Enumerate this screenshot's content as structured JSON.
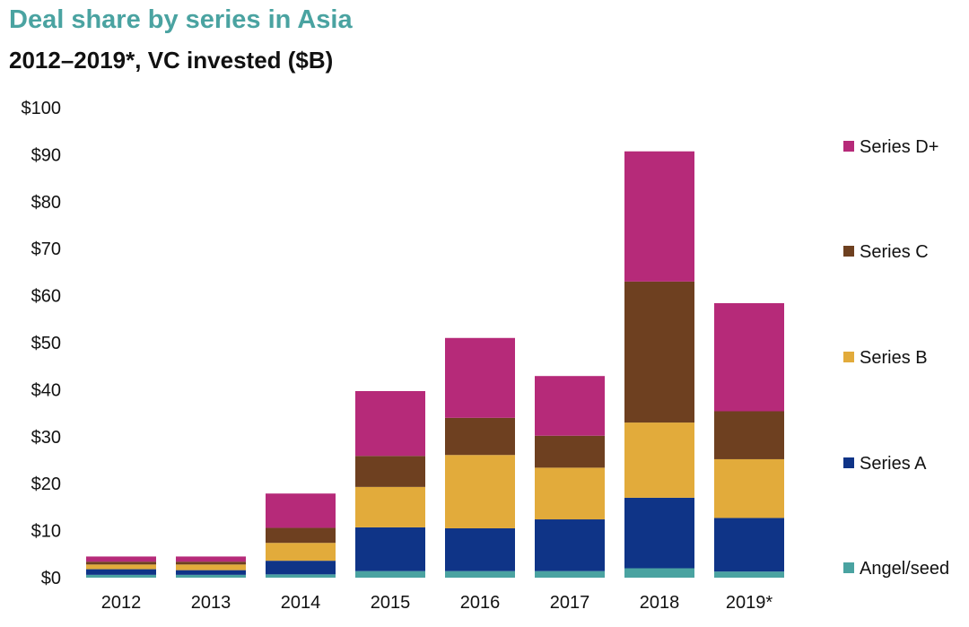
{
  "chart_data": {
    "type": "bar",
    "stacked": true,
    "title": "Deal share by series in Asia",
    "subtitle": "2012–2019*, VC invested ($B)",
    "categories": [
      "2012",
      "2013",
      "2014",
      "2015",
      "2016",
      "2017",
      "2018",
      "2019*"
    ],
    "y_ticks": [
      "$0",
      "$10",
      "$20",
      "$30",
      "$40",
      "$50",
      "$60",
      "$70",
      "$80",
      "$90",
      "$100"
    ],
    "ylim": [
      0,
      100
    ],
    "grid": false,
    "legend_position": "right",
    "series": [
      {
        "name": "Angel/seed",
        "color": "#4aa3a1",
        "values": [
          0.6,
          0.6,
          0.7,
          1.4,
          1.4,
          1.4,
          2.0,
          1.3
        ]
      },
      {
        "name": "Series A",
        "color": "#0f3487",
        "values": [
          1.2,
          1.0,
          2.9,
          9.3,
          9.1,
          11.0,
          15.0,
          11.4
        ]
      },
      {
        "name": "Series B",
        "color": "#e2ab3b",
        "values": [
          1.0,
          1.2,
          3.8,
          8.6,
          15.6,
          11.0,
          16.0,
          12.5
        ]
      },
      {
        "name": "Series C",
        "color": "#6e4020",
        "values": [
          0.6,
          0.6,
          3.2,
          6.6,
          7.9,
          6.8,
          30.0,
          10.2
        ]
      },
      {
        "name": "Series D+",
        "color": "#b62a79",
        "values": [
          1.1,
          1.1,
          7.3,
          13.8,
          17.0,
          12.7,
          27.7,
          23.0
        ]
      }
    ]
  }
}
